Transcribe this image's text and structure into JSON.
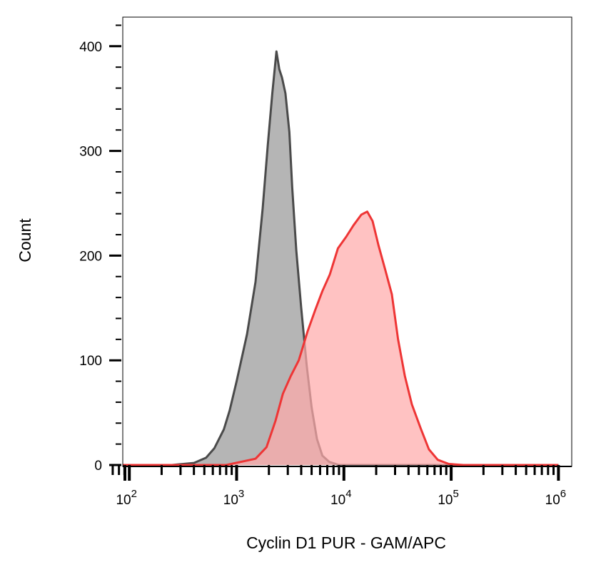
{
  "chart_data": {
    "type": "area",
    "xlabel": "Cyclin D1 PUR - GAM/APC",
    "ylabel": "Count",
    "x_scale": "log",
    "xlim": [
      70,
      1000000
    ],
    "ylim": [
      0,
      430
    ],
    "grid": false,
    "x_ticks": [
      {
        "base": "10",
        "exp": "2",
        "value": 100
      },
      {
        "base": "10",
        "exp": "3",
        "value": 1000
      },
      {
        "base": "10",
        "exp": "4",
        "value": 10000
      },
      {
        "base": "10",
        "exp": "5",
        "value": 100000
      },
      {
        "base": "10",
        "exp": "6",
        "value": 1000000
      }
    ],
    "y_ticks": [
      {
        "label": "0",
        "value": 0
      },
      {
        "label": "100",
        "value": 100
      },
      {
        "label": "200",
        "value": 200
      },
      {
        "label": "300",
        "value": 300
      },
      {
        "label": "400",
        "value": 400
      }
    ],
    "series": [
      {
        "fill": "#b5b5b5",
        "stroke": "#4a4a4a",
        "points": [
          [
            70,
            0
          ],
          [
            250,
            0
          ],
          [
            400,
            2
          ],
          [
            520,
            7
          ],
          [
            620,
            16
          ],
          [
            760,
            34
          ],
          [
            860,
            52
          ],
          [
            1000,
            80
          ],
          [
            1250,
            125
          ],
          [
            1500,
            175
          ],
          [
            1750,
            245
          ],
          [
            1950,
            305
          ],
          [
            2150,
            355
          ],
          [
            2350,
            395
          ],
          [
            2500,
            378
          ],
          [
            2650,
            370
          ],
          [
            2850,
            355
          ],
          [
            3100,
            318
          ],
          [
            3300,
            265
          ],
          [
            3600,
            205
          ],
          [
            4000,
            150
          ],
          [
            4500,
            95
          ],
          [
            5000,
            55
          ],
          [
            5600,
            25
          ],
          [
            6300,
            9
          ],
          [
            7300,
            3
          ],
          [
            9000,
            0
          ],
          [
            1000000,
            0
          ]
        ]
      },
      {
        "fill": "#ffaaaa",
        "stroke": "#ee3535",
        "points": [
          [
            70,
            0
          ],
          [
            800,
            0
          ],
          [
            1500,
            6
          ],
          [
            1900,
            17
          ],
          [
            2300,
            42
          ],
          [
            2700,
            68
          ],
          [
            3200,
            85
          ],
          [
            3800,
            100
          ],
          [
            4600,
            128
          ],
          [
            5400,
            148
          ],
          [
            6300,
            166
          ],
          [
            7400,
            182
          ],
          [
            8800,
            207
          ],
          [
            10500,
            218
          ],
          [
            12300,
            229
          ],
          [
            14500,
            239
          ],
          [
            16500,
            242
          ],
          [
            18500,
            233
          ],
          [
            21000,
            210
          ],
          [
            24500,
            185
          ],
          [
            28000,
            163
          ],
          [
            32000,
            120
          ],
          [
            37000,
            85
          ],
          [
            43000,
            58
          ],
          [
            52000,
            35
          ],
          [
            62000,
            15
          ],
          [
            75000,
            5
          ],
          [
            95000,
            1
          ],
          [
            130000,
            0
          ],
          [
            1000000,
            0
          ]
        ]
      }
    ]
  }
}
